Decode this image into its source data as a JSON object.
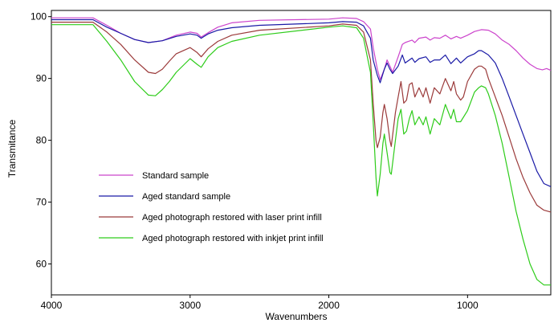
{
  "chart_data": {
    "type": "line",
    "title": "",
    "xlabel": "Wavenumbers",
    "ylabel": "Transmitance",
    "xlim": [
      4000,
      400
    ],
    "ylim": [
      55,
      101
    ],
    "x_reversed": true,
    "grid": false,
    "legend_position": "left-center",
    "x_ticks": [
      {
        "value": 4000,
        "label": "4000"
      },
      {
        "value": 3000,
        "label": "3000"
      },
      {
        "value": 2000,
        "label": "2000"
      },
      {
        "value": 1000,
        "label": "1000"
      }
    ],
    "y_ticks": [
      {
        "value": 100,
        "label": "100"
      },
      {
        "value": 90,
        "label": "90"
      },
      {
        "value": 80,
        "label": "80"
      },
      {
        "value": 70,
        "label": "70"
      },
      {
        "value": 60,
        "label": "60"
      }
    ],
    "series": [
      {
        "name": "Standard sample",
        "color": "#cc44cc",
        "points": [
          [
            4000,
            99.8
          ],
          [
            3700,
            99.8
          ],
          [
            3600,
            98.6
          ],
          [
            3500,
            97.3
          ],
          [
            3400,
            96.3
          ],
          [
            3300,
            95.8
          ],
          [
            3200,
            96.1
          ],
          [
            3100,
            97.0
          ],
          [
            3000,
            97.5
          ],
          [
            2950,
            97.3
          ],
          [
            2920,
            96.7
          ],
          [
            2870,
            97.4
          ],
          [
            2800,
            98.3
          ],
          [
            2700,
            99.0
          ],
          [
            2500,
            99.4
          ],
          [
            2000,
            99.6
          ],
          [
            1900,
            99.8
          ],
          [
            1800,
            99.7
          ],
          [
            1750,
            99.2
          ],
          [
            1700,
            98.0
          ],
          [
            1680,
            95.0
          ],
          [
            1650,
            91.5
          ],
          [
            1630,
            89.8
          ],
          [
            1600,
            91.5
          ],
          [
            1580,
            93.0
          ],
          [
            1560,
            92.0
          ],
          [
            1540,
            91.0
          ],
          [
            1500,
            93.5
          ],
          [
            1470,
            95.5
          ],
          [
            1450,
            95.8
          ],
          [
            1400,
            96.2
          ],
          [
            1380,
            95.8
          ],
          [
            1350,
            96.5
          ],
          [
            1300,
            96.7
          ],
          [
            1270,
            96.2
          ],
          [
            1240,
            96.6
          ],
          [
            1200,
            96.5
          ],
          [
            1160,
            97.0
          ],
          [
            1120,
            96.4
          ],
          [
            1080,
            96.8
          ],
          [
            1050,
            96.5
          ],
          [
            1000,
            97.0
          ],
          [
            950,
            97.6
          ],
          [
            900,
            97.9
          ],
          [
            850,
            97.8
          ],
          [
            800,
            97.2
          ],
          [
            750,
            96.2
          ],
          [
            700,
            95.5
          ],
          [
            650,
            94.5
          ],
          [
            600,
            93.3
          ],
          [
            550,
            92.3
          ],
          [
            500,
            91.6
          ],
          [
            460,
            91.4
          ],
          [
            430,
            91.6
          ],
          [
            400,
            91.3
          ]
        ]
      },
      {
        "name": "Aged standard sample",
        "color": "#1a1aa6",
        "points": [
          [
            4000,
            99.5
          ],
          [
            3700,
            99.5
          ],
          [
            3600,
            98.3
          ],
          [
            3500,
            97.3
          ],
          [
            3400,
            96.3
          ],
          [
            3300,
            95.8
          ],
          [
            3200,
            96.1
          ],
          [
            3100,
            96.8
          ],
          [
            3000,
            97.2
          ],
          [
            2950,
            97.0
          ],
          [
            2920,
            96.5
          ],
          [
            2870,
            97.2
          ],
          [
            2800,
            97.8
          ],
          [
            2700,
            98.2
          ],
          [
            2500,
            98.6
          ],
          [
            2000,
            99.0
          ],
          [
            1900,
            99.2
          ],
          [
            1800,
            99.1
          ],
          [
            1750,
            98.5
          ],
          [
            1700,
            96.5
          ],
          [
            1680,
            93.0
          ],
          [
            1650,
            90.5
          ],
          [
            1630,
            89.3
          ],
          [
            1600,
            91.5
          ],
          [
            1580,
            92.5
          ],
          [
            1560,
            91.5
          ],
          [
            1540,
            90.8
          ],
          [
            1500,
            92.0
          ],
          [
            1470,
            93.8
          ],
          [
            1450,
            92.5
          ],
          [
            1400,
            93.3
          ],
          [
            1380,
            92.6
          ],
          [
            1350,
            93.2
          ],
          [
            1300,
            93.5
          ],
          [
            1270,
            92.6
          ],
          [
            1240,
            93.0
          ],
          [
            1200,
            93.0
          ],
          [
            1160,
            93.8
          ],
          [
            1120,
            92.4
          ],
          [
            1080,
            93.3
          ],
          [
            1050,
            92.5
          ],
          [
            1000,
            93.5
          ],
          [
            950,
            94.0
          ],
          [
            920,
            94.5
          ],
          [
            900,
            94.5
          ],
          [
            850,
            93.8
          ],
          [
            800,
            92.5
          ],
          [
            750,
            90.0
          ],
          [
            700,
            87.0
          ],
          [
            650,
            84.0
          ],
          [
            600,
            81.0
          ],
          [
            550,
            78.0
          ],
          [
            500,
            75.0
          ],
          [
            450,
            73.0
          ],
          [
            400,
            72.5
          ]
        ]
      },
      {
        "name": "Aged photograph restored with laser print infill",
        "color": "#9b3a3a",
        "points": [
          [
            4000,
            99.1
          ],
          [
            3700,
            99.1
          ],
          [
            3600,
            97.5
          ],
          [
            3500,
            95.5
          ],
          [
            3400,
            93.0
          ],
          [
            3300,
            91.0
          ],
          [
            3250,
            90.8
          ],
          [
            3200,
            91.5
          ],
          [
            3150,
            92.8
          ],
          [
            3100,
            94.0
          ],
          [
            3000,
            95.0
          ],
          [
            2950,
            94.2
          ],
          [
            2920,
            93.5
          ],
          [
            2870,
            94.8
          ],
          [
            2800,
            96.0
          ],
          [
            2700,
            97.0
          ],
          [
            2500,
            97.8
          ],
          [
            2000,
            98.5
          ],
          [
            1900,
            98.8
          ],
          [
            1800,
            98.6
          ],
          [
            1750,
            97.5
          ],
          [
            1700,
            93.0
          ],
          [
            1680,
            86.0
          ],
          [
            1660,
            80.0
          ],
          [
            1650,
            78.8
          ],
          [
            1630,
            80.5
          ],
          [
            1610,
            84.5
          ],
          [
            1600,
            85.8
          ],
          [
            1580,
            83.5
          ],
          [
            1560,
            80.0
          ],
          [
            1550,
            79.0
          ],
          [
            1520,
            84.5
          ],
          [
            1500,
            87.0
          ],
          [
            1480,
            89.5
          ],
          [
            1460,
            86.0
          ],
          [
            1440,
            86.5
          ],
          [
            1420,
            89.0
          ],
          [
            1400,
            89.3
          ],
          [
            1380,
            87.0
          ],
          [
            1350,
            88.5
          ],
          [
            1320,
            87.0
          ],
          [
            1300,
            88.5
          ],
          [
            1270,
            86.0
          ],
          [
            1240,
            88.5
          ],
          [
            1200,
            87.5
          ],
          [
            1160,
            90.0
          ],
          [
            1120,
            88.0
          ],
          [
            1100,
            89.5
          ],
          [
            1080,
            87.5
          ],
          [
            1050,
            86.5
          ],
          [
            1030,
            87.0
          ],
          [
            1000,
            89.5
          ],
          [
            950,
            91.5
          ],
          [
            920,
            92.0
          ],
          [
            900,
            92.0
          ],
          [
            870,
            91.5
          ],
          [
            850,
            90.0
          ],
          [
            800,
            87.0
          ],
          [
            750,
            84.0
          ],
          [
            700,
            80.5
          ],
          [
            650,
            77.0
          ],
          [
            600,
            74.0
          ],
          [
            550,
            71.5
          ],
          [
            500,
            69.5
          ],
          [
            450,
            68.7
          ],
          [
            400,
            68.4
          ]
        ]
      },
      {
        "name": "Aged photograph restored with inkjet print infill",
        "color": "#2ecc1a",
        "points": [
          [
            4000,
            98.7
          ],
          [
            3700,
            98.7
          ],
          [
            3600,
            96.0
          ],
          [
            3500,
            93.0
          ],
          [
            3400,
            89.5
          ],
          [
            3300,
            87.3
          ],
          [
            3250,
            87.2
          ],
          [
            3200,
            88.2
          ],
          [
            3150,
            89.5
          ],
          [
            3100,
            91.0
          ],
          [
            3000,
            93.2
          ],
          [
            2950,
            92.3
          ],
          [
            2920,
            91.8
          ],
          [
            2870,
            93.5
          ],
          [
            2800,
            95.0
          ],
          [
            2700,
            96.0
          ],
          [
            2500,
            97.0
          ],
          [
            2000,
            98.3
          ],
          [
            1900,
            98.5
          ],
          [
            1800,
            98.2
          ],
          [
            1750,
            96.5
          ],
          [
            1700,
            91.0
          ],
          [
            1680,
            83.0
          ],
          [
            1660,
            74.0
          ],
          [
            1650,
            71.0
          ],
          [
            1630,
            74.5
          ],
          [
            1610,
            79.5
          ],
          [
            1600,
            81.0
          ],
          [
            1580,
            78.0
          ],
          [
            1560,
            74.8
          ],
          [
            1550,
            74.5
          ],
          [
            1520,
            80.0
          ],
          [
            1500,
            83.5
          ],
          [
            1480,
            85.0
          ],
          [
            1460,
            81.0
          ],
          [
            1440,
            81.5
          ],
          [
            1420,
            83.5
          ],
          [
            1400,
            84.8
          ],
          [
            1380,
            82.5
          ],
          [
            1350,
            83.8
          ],
          [
            1320,
            82.5
          ],
          [
            1300,
            83.8
          ],
          [
            1270,
            81.0
          ],
          [
            1240,
            83.5
          ],
          [
            1200,
            82.5
          ],
          [
            1160,
            85.8
          ],
          [
            1120,
            83.5
          ],
          [
            1100,
            85.0
          ],
          [
            1080,
            83.0
          ],
          [
            1050,
            83.0
          ],
          [
            1000,
            84.8
          ],
          [
            950,
            87.8
          ],
          [
            920,
            88.5
          ],
          [
            900,
            88.8
          ],
          [
            870,
            88.5
          ],
          [
            850,
            87.5
          ],
          [
            800,
            84.0
          ],
          [
            750,
            79.5
          ],
          [
            700,
            74.0
          ],
          [
            650,
            68.5
          ],
          [
            600,
            64.0
          ],
          [
            550,
            60.0
          ],
          [
            500,
            57.5
          ],
          [
            450,
            56.6
          ],
          [
            400,
            56.6
          ]
        ]
      }
    ]
  }
}
